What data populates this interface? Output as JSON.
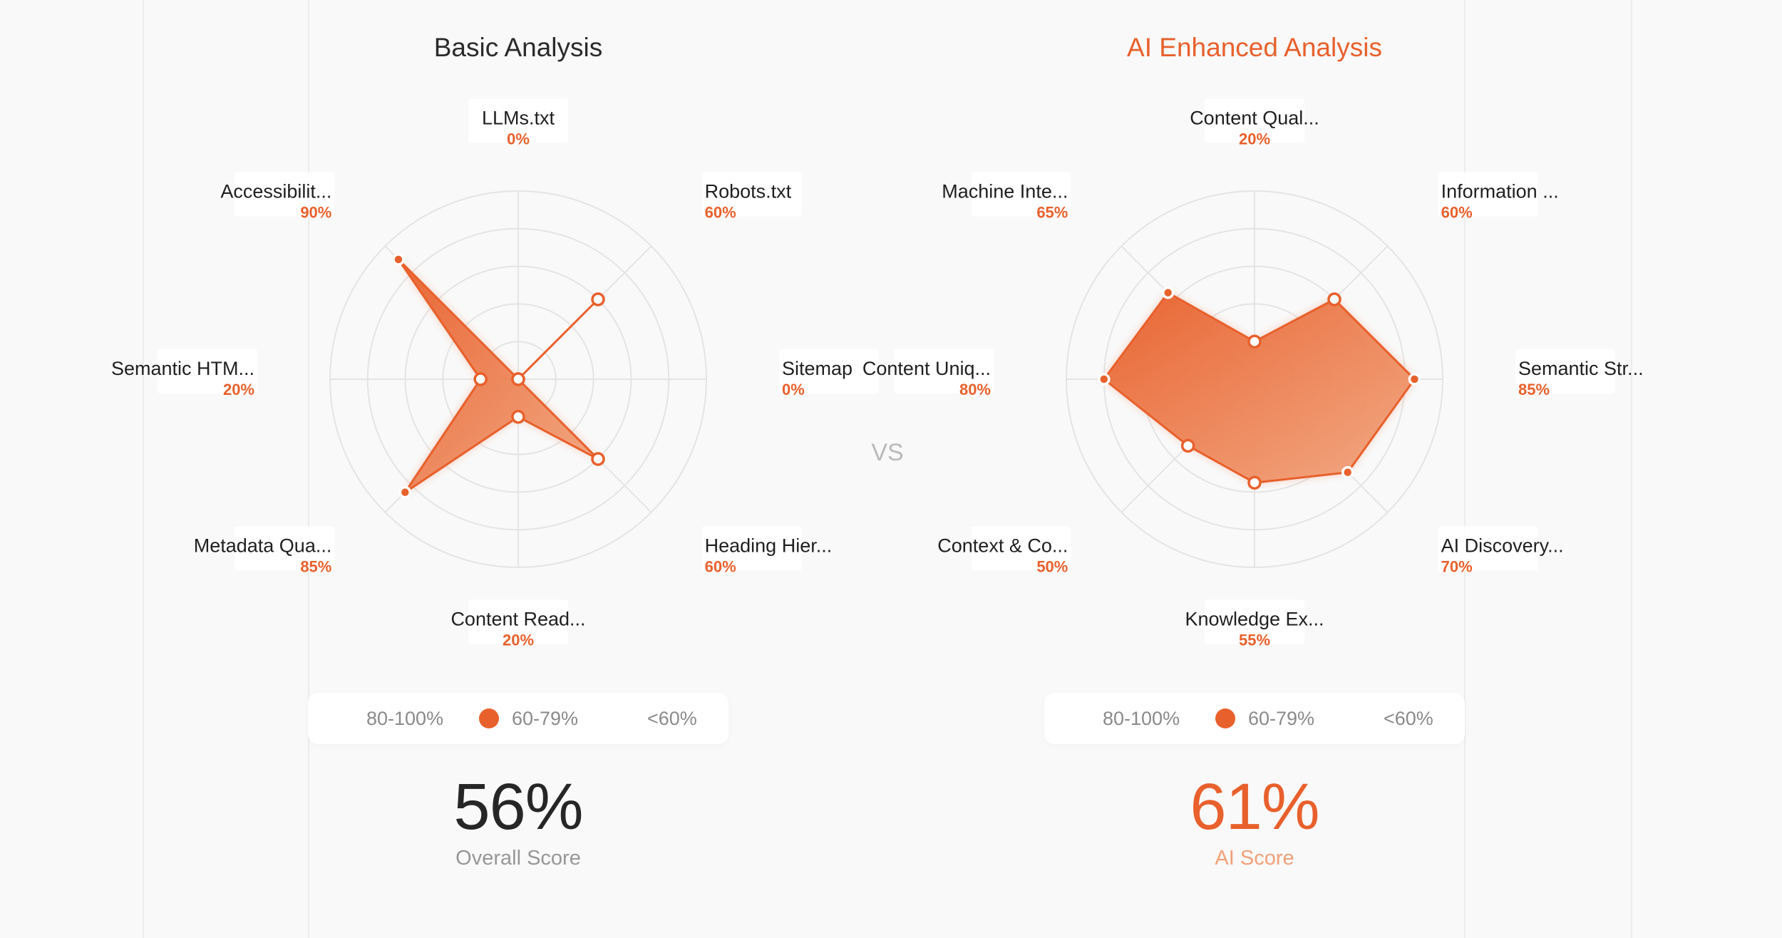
{
  "vs_label": "VS",
  "colors": {
    "accent": "#e8602c",
    "grid": "#e4e4e4",
    "text": "#1f1f1f",
    "muted": "#979797"
  },
  "legend": {
    "items": [
      "80-100%",
      "60-79%",
      "<60%"
    ]
  },
  "basic": {
    "title": "Basic Analysis",
    "score": "56%",
    "score_label": "Overall Score"
  },
  "ai": {
    "title": "AI Enhanced Analysis",
    "score": "61%",
    "score_label": "AI Score"
  },
  "chart_data": [
    {
      "type": "radar",
      "title": "Basic Analysis",
      "categories": [
        "LLMs.txt",
        "Robots.txt",
        "Sitemap",
        "Heading Hier...",
        "Content Read...",
        "Metadata Qua...",
        "Semantic HTM...",
        "Accessibilit..."
      ],
      "values": [
        0,
        60,
        0,
        60,
        20,
        85,
        20,
        90
      ],
      "value_labels": [
        "0%",
        "60%",
        "0%",
        "60%",
        "20%",
        "85%",
        "20%",
        "90%"
      ],
      "rlim": [
        0,
        100
      ],
      "grid": true
    },
    {
      "type": "radar",
      "title": "AI Enhanced Analysis",
      "categories": [
        "Content Qual...",
        "Information ...",
        "Semantic Str...",
        "AI Discovery...",
        "Knowledge Ex...",
        "Context & Co...",
        "Content Uniq...",
        "Machine Inte..."
      ],
      "values": [
        20,
        60,
        85,
        70,
        55,
        50,
        80,
        65
      ],
      "value_labels": [
        "20%",
        "60%",
        "85%",
        "70%",
        "55%",
        "50%",
        "80%",
        "65%"
      ],
      "rlim": [
        0,
        100
      ],
      "grid": true
    }
  ]
}
